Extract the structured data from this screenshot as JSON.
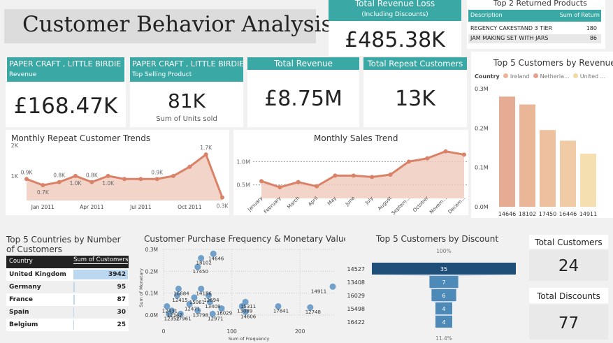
{
  "title": "Customer Behavior Analysis",
  "revenue_loss": {
    "header": "Total Revenue Loss",
    "sub": "(Including Discounts)",
    "value": "£485.38K"
  },
  "returned": {
    "title": "Top 2 Returned Products",
    "col1": "Description",
    "col2": "Sum of Return",
    "rows": [
      {
        "desc": "REGENCY CAKESTAND 3 TIER",
        "val": "180"
      },
      {
        "desc": "JAM MAKING SET WITH JARS",
        "val": "86"
      }
    ]
  },
  "kpi_revenue_product": {
    "header": "PAPER CRAFT , LITTLE BIRDIE",
    "sub": "Revenue",
    "value": "£168.47K"
  },
  "kpi_top_product": {
    "header": "PAPER CRAFT , LITTLE BIRDIE",
    "sub": "Top Selling Product",
    "value": "81K",
    "caption": "Sum of Units sold"
  },
  "kpi_total_revenue": {
    "header": "Total Revenue",
    "value": "£8.75M"
  },
  "kpi_repeat": {
    "header": "Total Repeat Customers",
    "value": "13K"
  },
  "kpi_total_customers": {
    "header": "Total Customers",
    "value": "24"
  },
  "kpi_total_discounts": {
    "header": "Total Discounts",
    "value": "77"
  },
  "top_countries": {
    "title": "Top 5 Countries by Number of Customers",
    "col1": "Country",
    "col2": "Sum of Customers",
    "rows": [
      {
        "country": "United Kingdom",
        "value": "3942",
        "n": 3942
      },
      {
        "country": "Germany",
        "value": "95",
        "n": 95
      },
      {
        "country": "France",
        "value": "87",
        "n": 87
      },
      {
        "country": "Spain",
        "value": "30",
        "n": 30
      },
      {
        "country": "Belgium",
        "value": "25",
        "n": 25
      }
    ]
  },
  "colors": {
    "teal": "#3aa8a4",
    "line": "#d98268",
    "area": "#f0c9bb",
    "navy": "#1f4e79",
    "funnel": "#4d8ab8",
    "scatter": "#5b93c3"
  },
  "chart_data": [
    {
      "id": "repeat",
      "type": "line",
      "title": "Monthly Repeat Customer Trends",
      "x": [
        1,
        2,
        3,
        4,
        5,
        6,
        7,
        8,
        9,
        10,
        11,
        12,
        13
      ],
      "values": [
        0.9,
        0.7,
        0.8,
        1.0,
        0.8,
        1.0,
        0.9,
        0.9,
        0.9,
        1.0,
        1.3,
        1.7,
        0.3
      ],
      "labels": [
        "0.9K",
        "0.7K",
        "0.8K",
        "1.0K",
        "0.8K",
        "1.0K",
        "",
        "",
        "0.9K",
        "",
        "",
        "1.7K",
        "0.3K"
      ],
      "xticks": [
        "Jan 2011",
        "Apr 2011",
        "Jul 2011",
        "Oct 2011"
      ],
      "xtick_index": [
        1,
        4,
        7,
        10
      ],
      "yticks": [
        "1K",
        "2K"
      ],
      "ytick_values": [
        1,
        2
      ],
      "ylim": [
        0.2,
        2.0
      ]
    },
    {
      "id": "sales",
      "type": "line",
      "title": "Monthly Sales Trend",
      "categories": [
        "January",
        "February",
        "March",
        "April",
        "May",
        "June",
        "July",
        "August",
        "September",
        "October",
        "November",
        "December"
      ],
      "xtick_labels": [
        "January",
        "February",
        "March",
        "April",
        "May",
        "June",
        "July",
        "August",
        "Septem...",
        "October",
        "Novem...",
        "Decem..."
      ],
      "values": [
        0.58,
        0.45,
        0.56,
        0.47,
        0.7,
        0.7,
        0.67,
        0.72,
        1.0,
        1.07,
        1.22,
        1.15
      ],
      "yticks": [
        "0.5M",
        "1.0M"
      ],
      "ytick_values": [
        0.5,
        1.0
      ],
      "ylim": [
        0.3,
        1.35
      ]
    },
    {
      "id": "top5rev",
      "type": "bar",
      "title": "Top 5 Customers by Revenue",
      "legend_title": "Country",
      "legend": [
        {
          "name": "Ireland",
          "color": "#e8b49a"
        },
        {
          "name": "Netherla...",
          "color": "#e9a08c"
        },
        {
          "name": "United ...",
          "color": "#f3d9a8"
        }
      ],
      "categories": [
        "14646",
        "18102",
        "17450",
        "16446",
        "14911"
      ],
      "values": [
        2.8,
        2.6,
        1.95,
        1.68,
        1.35
      ],
      "bar_colors": [
        "#e6ac93",
        "#e9b697",
        "#edc19f",
        "#f0cba6",
        "#f5deb0"
      ],
      "yticks": [
        "0.0M",
        "0.1M",
        "0.2M",
        "0.3M"
      ],
      "ytick_values": [
        0,
        1,
        2,
        3
      ],
      "ylim": [
        0,
        3
      ]
    },
    {
      "id": "scatter",
      "type": "scatter",
      "title": "Customer Purchase Frequency & Monetary Value",
      "xlabel": "Sum of Frequency",
      "ylabel": "Sum of Monetary",
      "xticks": [
        "0",
        "100",
        "200"
      ],
      "xtick_values": [
        0,
        100,
        200
      ],
      "yticks": [
        "0.0M",
        "0.1M",
        "0.2M",
        "0.3M"
      ],
      "ytick_values": [
        0,
        0.1,
        0.2,
        0.3
      ],
      "xlim": [
        0,
        250
      ],
      "ylim": [
        0,
        0.3
      ],
      "points": [
        {
          "label": "18102",
          "x": 55,
          "y": 0.26
        },
        {
          "label": "14646",
          "x": 73,
          "y": 0.28
        },
        {
          "label": "17450",
          "x": 50,
          "y": 0.22
        },
        {
          "label": "14911",
          "x": 248,
          "y": 0.13
        },
        {
          "label": "16684",
          "x": 22,
          "y": 0.12
        },
        {
          "label": "14156",
          "x": 55,
          "y": 0.12
        },
        {
          "label": "13694",
          "x": 66,
          "y": 0.09
        },
        {
          "label": "15311",
          "x": 120,
          "y": 0.06
        },
        {
          "label": "12415",
          "x": 20,
          "y": 0.09
        },
        {
          "label": "15061",
          "x": 45,
          "y": 0.08
        },
        {
          "label": "12431",
          "x": 5,
          "y": 0.04
        },
        {
          "label": "13408",
          "x": 68,
          "y": 0.06
        },
        {
          "label": "12471",
          "x": 38,
          "y": 0.05
        },
        {
          "label": "16029",
          "x": 85,
          "y": 0.03
        },
        {
          "label": "13089",
          "x": 115,
          "y": 0.04
        },
        {
          "label": "12347",
          "x": 12,
          "y": 0.02
        },
        {
          "label": "13798",
          "x": 50,
          "y": 0.02
        },
        {
          "label": "14606",
          "x": 120,
          "y": 0.015
        },
        {
          "label": "17841",
          "x": 168,
          "y": 0.04
        },
        {
          "label": "12748",
          "x": 215,
          "y": 0.035
        },
        {
          "label": "12352",
          "x": 8,
          "y": 0.005
        },
        {
          "label": "17961",
          "x": 25,
          "y": 0.005
        },
        {
          "label": "12971",
          "x": 72,
          "y": 0.005
        }
      ]
    },
    {
      "id": "funnel",
      "type": "bar",
      "title": "Top 5 Customers by Discount",
      "categories": [
        "14527",
        "13408",
        "16029",
        "15498",
        "16422"
      ],
      "values": [
        35,
        7,
        6,
        4,
        4
      ],
      "top_label": "100%",
      "bottom_label": "11.4%"
    }
  ]
}
